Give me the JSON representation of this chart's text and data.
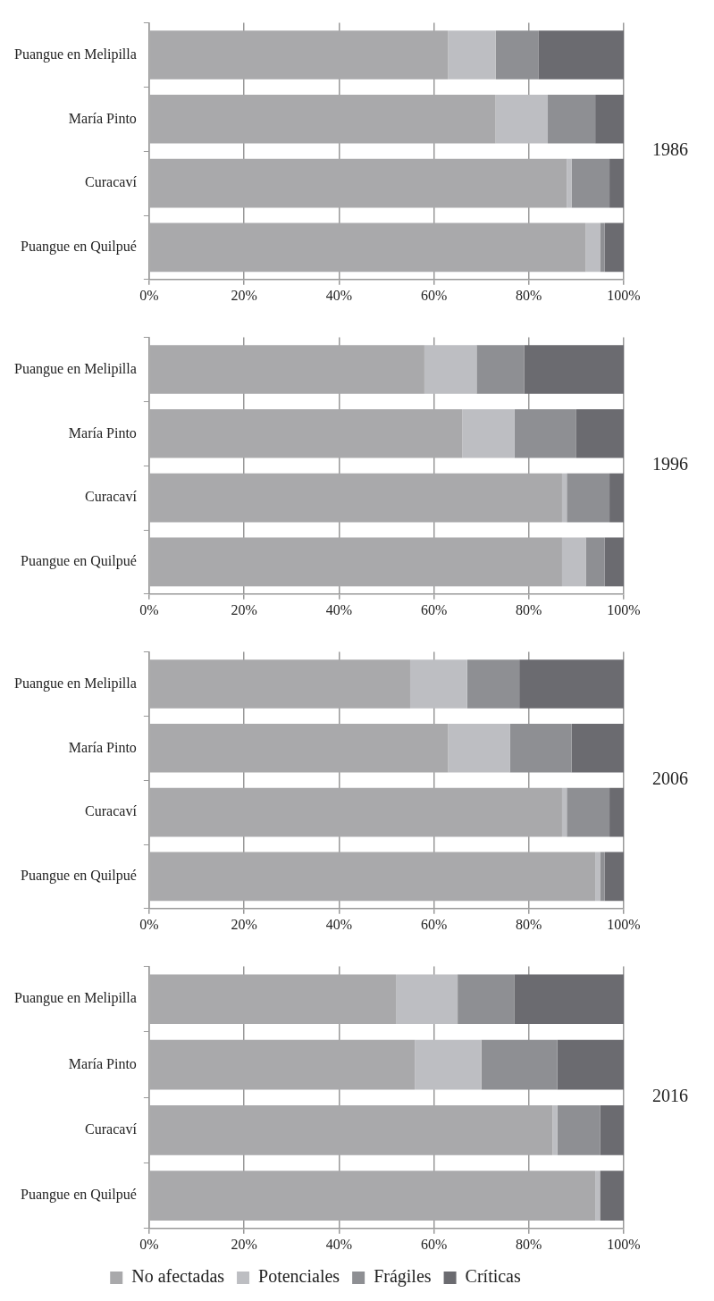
{
  "chart_data": [
    {
      "type": "bar",
      "orientation": "horizontal",
      "stacked": true,
      "annotations": [
        "1986"
      ],
      "categories": [
        "Puangue en Melipilla",
        "María Pinto",
        "Curacaví",
        "Puangue en Quilpué"
      ],
      "xlim": [
        0,
        100
      ],
      "xticks": [
        {
          "value": 0,
          "label": "0%"
        },
        {
          "value": 20,
          "label": "20%"
        },
        {
          "value": 40,
          "label": "40%"
        },
        {
          "value": 60,
          "label": "60%"
        },
        {
          "value": 80,
          "label": "80%"
        },
        {
          "value": 100,
          "label": "100%"
        }
      ],
      "grid": "x",
      "legend": false,
      "series": [
        {
          "color": "#a9a9ab",
          "values": [
            63,
            73,
            88,
            92
          ]
        },
        {
          "color": "#bdbec2",
          "values": [
            10,
            11,
            1,
            3
          ]
        },
        {
          "color": "#8e8f93",
          "values": [
            9,
            10,
            8,
            1
          ]
        },
        {
          "color": "#6b6b70",
          "values": [
            18,
            6,
            3,
            4
          ]
        }
      ]
    },
    {
      "type": "bar",
      "orientation": "horizontal",
      "stacked": true,
      "annotations": [
        "1996"
      ],
      "categories": [
        "Puangue en Melipilla",
        "María Pinto",
        "Curacaví",
        "Puangue en Quilpué"
      ],
      "xlim": [
        0,
        100
      ],
      "xticks": [
        {
          "value": 0,
          "label": "0%"
        },
        {
          "value": 20,
          "label": "20%"
        },
        {
          "value": 40,
          "label": "40%"
        },
        {
          "value": 60,
          "label": "60%"
        },
        {
          "value": 80,
          "label": "80%"
        },
        {
          "value": 100,
          "label": "100%"
        }
      ],
      "grid": "x",
      "legend": false,
      "series": [
        {
          "color": "#a9a9ab",
          "values": [
            58,
            66,
            87,
            87
          ]
        },
        {
          "color": "#bdbec2",
          "values": [
            11,
            11,
            1,
            5
          ]
        },
        {
          "color": "#8e8f93",
          "values": [
            10,
            13,
            9,
            4
          ]
        },
        {
          "color": "#6b6b70",
          "values": [
            21,
            10,
            3,
            4
          ]
        }
      ]
    },
    {
      "type": "bar",
      "orientation": "horizontal",
      "stacked": true,
      "annotations": [
        "2006"
      ],
      "categories": [
        "Puangue en Melipilla",
        "María Pinto",
        "Curacaví",
        "Puangue en Quilpué"
      ],
      "xlim": [
        0,
        100
      ],
      "xticks": [
        {
          "value": 0,
          "label": "0%"
        },
        {
          "value": 20,
          "label": "20%"
        },
        {
          "value": 40,
          "label": "40%"
        },
        {
          "value": 60,
          "label": "60%"
        },
        {
          "value": 80,
          "label": "80%"
        },
        {
          "value": 100,
          "label": "100%"
        }
      ],
      "grid": "x",
      "legend": false,
      "series": [
        {
          "color": "#a9a9ab",
          "values": [
            55,
            63,
            87,
            94
          ]
        },
        {
          "color": "#bdbec2",
          "values": [
            12,
            13,
            1,
            1
          ]
        },
        {
          "color": "#8e8f93",
          "values": [
            11,
            13,
            9,
            1
          ]
        },
        {
          "color": "#6b6b70",
          "values": [
            22,
            11,
            3,
            4
          ]
        }
      ]
    },
    {
      "type": "bar",
      "orientation": "horizontal",
      "stacked": true,
      "annotations": [
        "2016"
      ],
      "categories": [
        "Puangue en Melipilla",
        "María Pinto",
        "Curacaví",
        "Puangue en Quilpué"
      ],
      "xlim": [
        0,
        100
      ],
      "xticks": [
        {
          "value": 0,
          "label": "0%"
        },
        {
          "value": 20,
          "label": "20%"
        },
        {
          "value": 40,
          "label": "40%"
        },
        {
          "value": 60,
          "label": "60%"
        },
        {
          "value": 80,
          "label": "80%"
        },
        {
          "value": 100,
          "label": "100%"
        }
      ],
      "grid": "x",
      "legend": "bottom",
      "series": [
        {
          "name": "No afectadas",
          "color": "#a9a9ab",
          "values": [
            52,
            56,
            85,
            94
          ]
        },
        {
          "name": "Potenciales",
          "color": "#bdbec2",
          "values": [
            13,
            14,
            1,
            1
          ]
        },
        {
          "name": "Frágiles",
          "color": "#8e8f93",
          "values": [
            12,
            16,
            9,
            0
          ]
        },
        {
          "name": "Críticas",
          "color": "#6b6b70",
          "values": [
            23,
            14,
            5,
            5
          ]
        }
      ]
    }
  ]
}
